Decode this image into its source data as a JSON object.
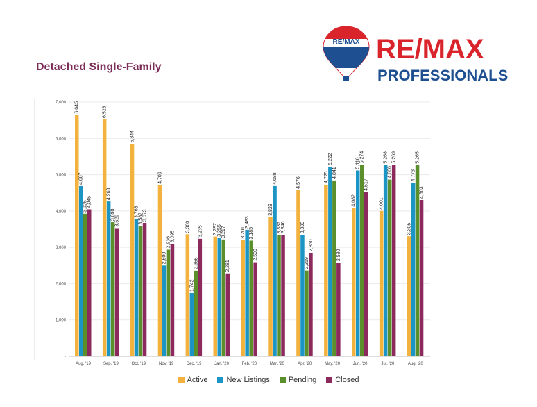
{
  "brand": {
    "balloon_text": "RE/MAX",
    "name": "RE/MAX",
    "office": "PROFESSIONALS",
    "red": "#d9242c",
    "blue": "#1d4f91"
  },
  "title": "Detached Single-Family",
  "colors": {
    "Active": "#f3b23e",
    "New Listings": "#1c94c4",
    "Pending": "#5a8f2c",
    "Closed": "#8c2a5e",
    "title": "#7b2b57"
  },
  "chart_data": {
    "type": "bar",
    "title": "Detached Single-Family",
    "categories": [
      "Aug, '19",
      "Sep, '19",
      "Oct, '19",
      "Nov, '19",
      "Dec, '19",
      "Jan, '20",
      "Feb, '20",
      "Mar, '20",
      "Apr, '20",
      "May, '20",
      "Jun, '20",
      "Jul, '20",
      "Aug, '20"
    ],
    "series": [
      {
        "name": "Active",
        "values": [
          6645,
          6523,
          5844,
          4709,
          3360,
          3297,
          3201,
          3829,
          4576,
          4725,
          4082,
          4001,
          3305
        ]
      },
      {
        "name": "New Listings",
        "values": [
          4687,
          4263,
          3768,
          2500,
          1742,
          3255,
          3483,
          4688,
          3339,
          5222,
          5116,
          5268,
          4773
        ]
      },
      {
        "name": "Pending",
        "values": [
          3925,
          3690,
          3587,
          2936,
          2355,
          3217,
          3185,
          3337,
          2359,
          4841,
          5274,
          4866,
          5265
        ]
      },
      {
        "name": "Closed",
        "values": [
          4045,
          3529,
          3673,
          3095,
          3235,
          2281,
          2590,
          3346,
          2850,
          2580,
          4517,
          5269,
          4303
        ]
      }
    ],
    "value_labels": [
      [
        "6,645",
        "6,523",
        "5,844",
        "4,709",
        "3,360",
        "3,297",
        "3,201",
        "3,829",
        "4,576",
        "4,725",
        "4,082",
        "4,001",
        "3,305"
      ],
      [
        "4,687",
        "4,263",
        "3,768",
        "2,500",
        "1,742",
        "3,255",
        "3,483",
        "4,688",
        "3,339",
        "5,222",
        "5,116",
        "5,268",
        "4,773"
      ],
      [
        "3,925",
        "3,690",
        "3,587",
        "2,936",
        "2,355",
        "3,217",
        "3,185",
        "3,337",
        "2,359",
        "4,841",
        "5,274",
        "4,866",
        "5,265"
      ],
      [
        "4,045",
        "3,529",
        "3,673",
        "3,095",
        "3,235",
        "2,281",
        "2,590",
        "3,346",
        "2,850",
        "2,580",
        "4,517",
        "5,269",
        "4,303"
      ]
    ],
    "yticks": [
      "-",
      "1,000",
      "2,000",
      "3,000",
      "4,000",
      "5,000",
      "6,000",
      "7,000"
    ],
    "ylim": [
      0,
      7000
    ],
    "grid": true,
    "legend_position": "bottom"
  }
}
